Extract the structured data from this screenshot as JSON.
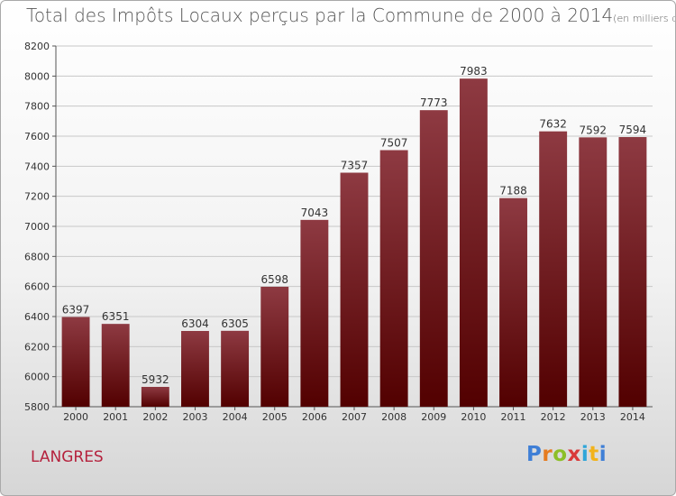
{
  "title": "Total des Impôts Locaux perçus par la Commune de 2000 à 2014",
  "title_unit": "(en milliers d'€)",
  "commune": "LANGRES",
  "logo": "Proxiti",
  "colors": {
    "bar_light": "#8e3a42",
    "bar_dark": "#520000",
    "commune": "#b5223d"
  },
  "chart_data": {
    "type": "bar",
    "title": "Total des Impôts Locaux perçus par la Commune de 2000 à 2014",
    "xlabel": "",
    "ylabel": "en milliers d'€",
    "categories": [
      "2000",
      "2001",
      "2002",
      "2003",
      "2004",
      "2005",
      "2006",
      "2007",
      "2008",
      "2009",
      "2010",
      "2011",
      "2012",
      "2013",
      "2014"
    ],
    "values": [
      6397,
      6351,
      5932,
      6304,
      6305,
      6598,
      7043,
      7357,
      7507,
      7773,
      7983,
      7188,
      7632,
      7592,
      7594
    ],
    "ylim": [
      5800,
      8200
    ],
    "yticks": [
      5800,
      6000,
      6200,
      6400,
      6600,
      6800,
      7000,
      7200,
      7400,
      7600,
      7800,
      8000,
      8200
    ],
    "grid": true
  }
}
